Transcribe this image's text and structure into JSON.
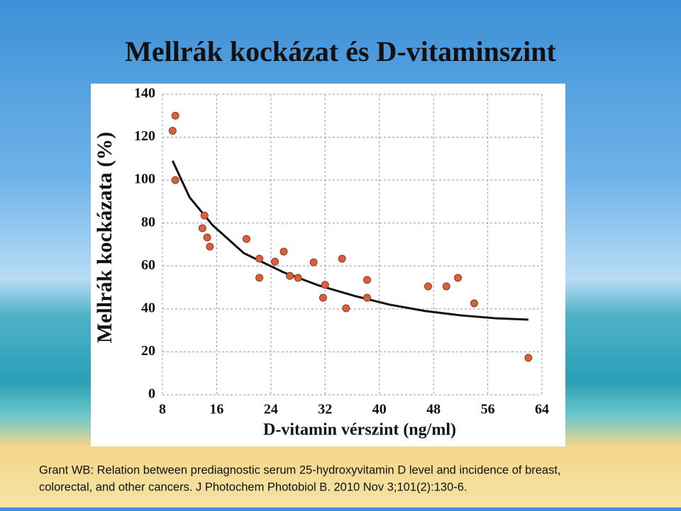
{
  "chart_data": {
    "type": "scatter",
    "title": "Mellrák kockázat és D-vitaminszint",
    "x_label": "D-vitamin vérszint (ng/ml)",
    "y_label": "Mellrák kockázata (%)",
    "xlim": [
      8,
      64
    ],
    "ylim": [
      0,
      140
    ],
    "xticks": [
      8,
      16,
      24,
      32,
      40,
      48,
      56,
      64
    ],
    "yticks": [
      0,
      20,
      40,
      60,
      80,
      100,
      120,
      140
    ],
    "grid": true,
    "series": [
      {
        "color": "#d9603b",
        "x": [
          9.5,
          9.9,
          9.9,
          14.2,
          13.9,
          14.6,
          15.0,
          20.4,
          22.3,
          22.3,
          24.6,
          25.9,
          26.8,
          28.0,
          30.3,
          32.0,
          31.7,
          34.5,
          35.1,
          38.2,
          38.2,
          47.2,
          49.9,
          51.6,
          54.0,
          62.0
        ],
        "values": [
          123,
          130,
          100,
          83.5,
          77.6,
          73.3,
          69,
          72.6,
          63.4,
          54.5,
          62,
          66.7,
          55.4,
          54.5,
          61.7,
          51.2,
          45.2,
          63.4,
          40.3,
          53.5,
          45.2,
          50.5,
          50.5,
          54.5,
          42.6,
          17.2
        ]
      }
    ],
    "fit": {
      "color": "#111111",
      "x": [
        9.5,
        12,
        15.4,
        20,
        25.9,
        31,
        36.4,
        41.5,
        46.8,
        52,
        57.3,
        62
      ],
      "values": [
        109,
        92,
        79,
        66,
        57,
        51,
        46,
        42,
        39,
        37,
        35.6,
        35
      ]
    },
    "caption": [
      "Grant WB: Relation between prediagnostic serum 25-hydroxyvitamin D level and incidence of breast,",
      "colorectal, and other cancers. J Photochem Photobiol B. 2010 Nov 3;101(2):130-6."
    ]
  }
}
